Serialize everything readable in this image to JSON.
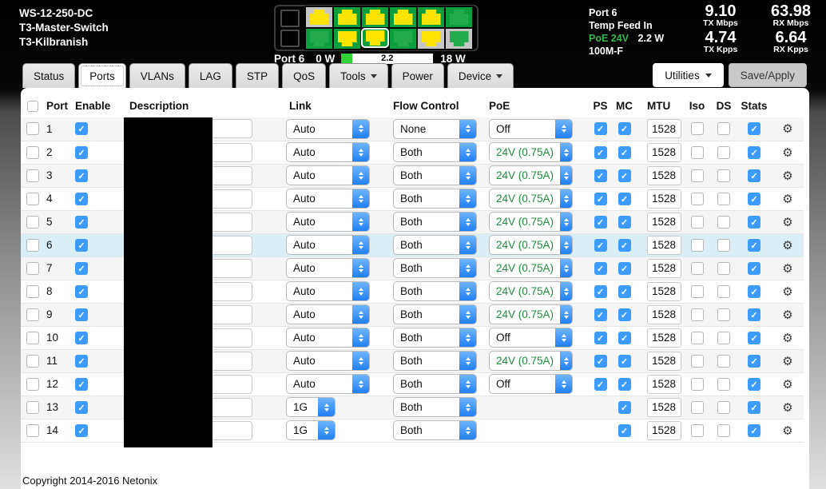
{
  "device": {
    "model": "WS-12-250-DC",
    "name": "T3-Master-Switch",
    "location": "T3-Kilbranish"
  },
  "port_panel": {
    "selected_port_label": "Port 6",
    "power_min": "0 W",
    "power_max": "18 W",
    "power_value": "2.2",
    "power_fill_pct": 12,
    "top_ports": [
      {
        "bg": "gray",
        "jack": "yellow",
        "selected": false
      },
      {
        "bg": "green",
        "jack": "yellow",
        "selected": false
      },
      {
        "bg": "green",
        "jack": "yellow",
        "selected": false
      },
      {
        "bg": "green",
        "jack": "yellow",
        "selected": false
      },
      {
        "bg": "green",
        "jack": "yellow",
        "selected": false
      },
      {
        "bg": "green",
        "jack": "green",
        "selected": false
      }
    ],
    "bottom_ports": [
      {
        "bg": "green",
        "jack": "green",
        "selected": false
      },
      {
        "bg": "green",
        "jack": "yellow",
        "selected": false
      },
      {
        "bg": "green",
        "jack": "yellow",
        "selected": true
      },
      {
        "bg": "green",
        "jack": "green",
        "selected": false
      },
      {
        "bg": "gray",
        "jack": "yellow",
        "selected": false
      },
      {
        "bg": "gray",
        "jack": "green",
        "selected": false
      }
    ]
  },
  "port_info": {
    "port": "Port 6",
    "line2": "Temp Feed In",
    "poe": "PoE 24V",
    "poe_power": "2.2 W",
    "link_mode": "100M-F"
  },
  "stats": [
    {
      "value": "9.10",
      "label": "TX Mbps"
    },
    {
      "value": "63.98",
      "label": "RX Mbps"
    },
    {
      "value": "4.74",
      "label": "TX Kpps"
    },
    {
      "value": "6.64",
      "label": "RX Kpps"
    }
  ],
  "tabs": [
    {
      "label": "Status",
      "active": false,
      "caret": false
    },
    {
      "label": "Ports",
      "active": true,
      "caret": false
    },
    {
      "label": "VLANs",
      "active": false,
      "caret": false
    },
    {
      "label": "LAG",
      "active": false,
      "caret": false
    },
    {
      "label": "STP",
      "active": false,
      "caret": false
    },
    {
      "label": "QoS",
      "active": false,
      "caret": false
    },
    {
      "label": "Tools",
      "active": false,
      "caret": true
    },
    {
      "label": "Power",
      "active": false,
      "caret": false
    },
    {
      "label": "Device",
      "active": false,
      "caret": true
    }
  ],
  "toolbar": {
    "utilities_label": "Utilities",
    "save_label": "Save/Apply"
  },
  "table": {
    "columns": {
      "port": "Port",
      "enable": "Enable",
      "description": "Description",
      "link": "Link",
      "flow": "Flow Control",
      "poe": "PoE",
      "ps": "PS",
      "mc": "MC",
      "mtu": "MTU",
      "iso": "Iso",
      "ds": "DS",
      "stats": "Stats"
    },
    "rows": [
      {
        "port": "1",
        "enable": true,
        "description": "",
        "link": "Auto",
        "link_narrow": false,
        "flow": "None",
        "poe": "Off",
        "poe_green": false,
        "has_poe": true,
        "ps": true,
        "has_ps": true,
        "mc": true,
        "mtu": "1528",
        "iso": false,
        "ds": false,
        "stats": true,
        "selected": false
      },
      {
        "port": "2",
        "enable": true,
        "description": "",
        "link": "Auto",
        "link_narrow": false,
        "flow": "Both",
        "poe": "24V (0.75A)",
        "poe_green": true,
        "has_poe": true,
        "ps": true,
        "has_ps": true,
        "mc": true,
        "mtu": "1528",
        "iso": false,
        "ds": false,
        "stats": true,
        "selected": false
      },
      {
        "port": "3",
        "enable": true,
        "description": "",
        "link": "Auto",
        "link_narrow": false,
        "flow": "Both",
        "poe": "24V (0.75A)",
        "poe_green": true,
        "has_poe": true,
        "ps": true,
        "has_ps": true,
        "mc": true,
        "mtu": "1528",
        "iso": false,
        "ds": false,
        "stats": true,
        "selected": false
      },
      {
        "port": "4",
        "enable": true,
        "description": "",
        "link": "Auto",
        "link_narrow": false,
        "flow": "Both",
        "poe": "24V (0.75A)",
        "poe_green": true,
        "has_poe": true,
        "ps": true,
        "has_ps": true,
        "mc": true,
        "mtu": "1528",
        "iso": false,
        "ds": false,
        "stats": true,
        "selected": false
      },
      {
        "port": "5",
        "enable": true,
        "description": "",
        "link": "Auto",
        "link_narrow": false,
        "flow": "Both",
        "poe": "24V (0.75A)",
        "poe_green": true,
        "has_poe": true,
        "ps": true,
        "has_ps": true,
        "mc": true,
        "mtu": "1528",
        "iso": false,
        "ds": false,
        "stats": true,
        "selected": false
      },
      {
        "port": "6",
        "enable": true,
        "description": "",
        "link": "Auto",
        "link_narrow": false,
        "flow": "Both",
        "poe": "24V (0.75A)",
        "poe_green": true,
        "has_poe": true,
        "ps": true,
        "has_ps": true,
        "mc": true,
        "mtu": "1528",
        "iso": false,
        "ds": false,
        "stats": true,
        "selected": true
      },
      {
        "port": "7",
        "enable": true,
        "description": "",
        "link": "Auto",
        "link_narrow": false,
        "flow": "Both",
        "poe": "24V (0.75A)",
        "poe_green": true,
        "has_poe": true,
        "ps": true,
        "has_ps": true,
        "mc": true,
        "mtu": "1528",
        "iso": false,
        "ds": false,
        "stats": true,
        "selected": false
      },
      {
        "port": "8",
        "enable": true,
        "description": "",
        "link": "Auto",
        "link_narrow": false,
        "flow": "Both",
        "poe": "24V (0.75A)",
        "poe_green": true,
        "has_poe": true,
        "ps": true,
        "has_ps": true,
        "mc": true,
        "mtu": "1528",
        "iso": false,
        "ds": false,
        "stats": true,
        "selected": false
      },
      {
        "port": "9",
        "enable": true,
        "description": "",
        "link": "Auto",
        "link_narrow": false,
        "flow": "Both",
        "poe": "24V (0.75A)",
        "poe_green": true,
        "has_poe": true,
        "ps": true,
        "has_ps": true,
        "mc": true,
        "mtu": "1528",
        "iso": false,
        "ds": false,
        "stats": true,
        "selected": false
      },
      {
        "port": "10",
        "enable": true,
        "description": "",
        "link": "Auto",
        "link_narrow": false,
        "flow": "Both",
        "poe": "Off",
        "poe_green": false,
        "has_poe": true,
        "ps": true,
        "has_ps": true,
        "mc": true,
        "mtu": "1528",
        "iso": false,
        "ds": false,
        "stats": true,
        "selected": false
      },
      {
        "port": "11",
        "enable": true,
        "description": "",
        "link": "Auto",
        "link_narrow": false,
        "flow": "Both",
        "poe": "24V (0.75A)",
        "poe_green": true,
        "has_poe": true,
        "ps": true,
        "has_ps": true,
        "mc": true,
        "mtu": "1528",
        "iso": false,
        "ds": false,
        "stats": true,
        "selected": false
      },
      {
        "port": "12",
        "enable": true,
        "description": "",
        "link": "Auto",
        "link_narrow": false,
        "flow": "Both",
        "poe": "Off",
        "poe_green": false,
        "has_poe": true,
        "ps": true,
        "has_ps": true,
        "mc": true,
        "mtu": "1528",
        "iso": false,
        "ds": false,
        "stats": true,
        "selected": false
      },
      {
        "port": "13",
        "enable": true,
        "description": "",
        "link": "1G",
        "link_narrow": true,
        "flow": "Both",
        "poe": "",
        "poe_green": false,
        "has_poe": false,
        "ps": false,
        "has_ps": false,
        "mc": true,
        "mtu": "1528",
        "iso": false,
        "ds": false,
        "stats": true,
        "selected": false
      },
      {
        "port": "14",
        "enable": true,
        "description": "",
        "link": "1G",
        "link_narrow": true,
        "flow": "Both",
        "poe": "",
        "poe_green": false,
        "has_poe": false,
        "ps": false,
        "has_ps": false,
        "mc": true,
        "mtu": "1528",
        "iso": false,
        "ds": false,
        "stats": true,
        "selected": false
      }
    ]
  },
  "footer": {
    "copyright": "Copyright 2014-2016 Netonix"
  },
  "colors": {
    "checkbox_blue": "#3d9bfd",
    "poe_text_green": "#1e8e3e",
    "port_green": "#0b9e3d",
    "port_gray": "#c6c6c6",
    "jack_yellow": "#ffe400",
    "jack_green": "#22aa4c",
    "power_fill_green": "#2fd335",
    "selected_row": "#d9eef7"
  }
}
